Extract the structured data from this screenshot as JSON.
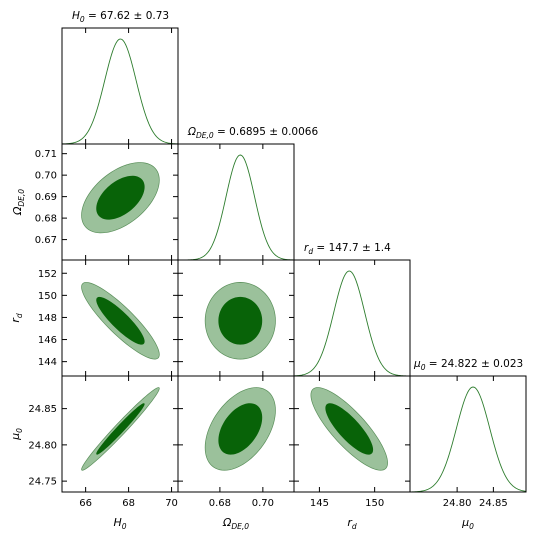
{
  "chart_data": {
    "type": "corner",
    "colors": {
      "line": "#2e7d2e",
      "inner": "#086308",
      "outer": "#9bc19b",
      "outer_edge": "#5a8f5a"
    },
    "parameters": [
      {
        "id": "H0",
        "label_base": "H",
        "label_sub": "0",
        "title_prefix": "H",
        "title_sub": "0",
        "title_value": " = 67.62 ± 0.73",
        "mean": 67.62,
        "sigma": 0.73,
        "range": [
          64.9,
          70.3
        ],
        "ticks": [
          66,
          68,
          70
        ]
      },
      {
        "id": "OmegaDE0",
        "label_base": "Ω",
        "label_sub": "DE,0",
        "title_prefix": "Ω",
        "title_sub": "DE,0",
        "title_value": " = 0.6895 ± 0.0066",
        "mean": 0.6895,
        "sigma": 0.0066,
        "range": [
          0.6605,
          0.7145
        ],
        "ticks": [
          0.67,
          0.68,
          0.69,
          0.7,
          0.71
        ],
        "x_tick_labels": [
          "0.68",
          "0.70"
        ],
        "y_tick_labels": [
          "0.67",
          "0.68",
          "0.69",
          "0.70",
          "0.71"
        ]
      },
      {
        "id": "rd",
        "label_base": "r",
        "label_sub": "d",
        "title_prefix": "r",
        "title_sub": "d",
        "title_value": " = 147.7 ± 1.4",
        "mean": 147.7,
        "sigma": 1.4,
        "range": [
          142.7,
          153.2
        ],
        "ticks": [
          144,
          145,
          146,
          148,
          150,
          152
        ],
        "x_tick_labels": [
          "145",
          "150"
        ],
        "y_tick_labels": [
          "144",
          "146",
          "148",
          "150",
          "152"
        ]
      },
      {
        "id": "mu0",
        "label_base": "μ",
        "label_sub": "0",
        "title_prefix": "μ",
        "title_sub": "0",
        "title_value": " = 24.822 ± 0.023",
        "mean": 24.822,
        "sigma": 0.023,
        "range": [
          24.735,
          24.895
        ],
        "ticks": [
          24.75,
          24.8,
          24.85
        ],
        "x_tick_labels": [
          "24.80",
          "24.85"
        ],
        "y_tick_labels": [
          "24.75",
          "24.80",
          "24.85"
        ]
      }
    ],
    "correlations": [
      [
        1.0,
        0.5,
        -0.88,
        0.98
      ],
      [
        0.5,
        1.0,
        0.0,
        0.45
      ],
      [
        -0.88,
        0.0,
        1.0,
        -0.82
      ],
      [
        0.98,
        0.45,
        -0.82,
        1.0
      ]
    ],
    "contour_levels_sigma": [
      1.52,
      2.48
    ]
  }
}
